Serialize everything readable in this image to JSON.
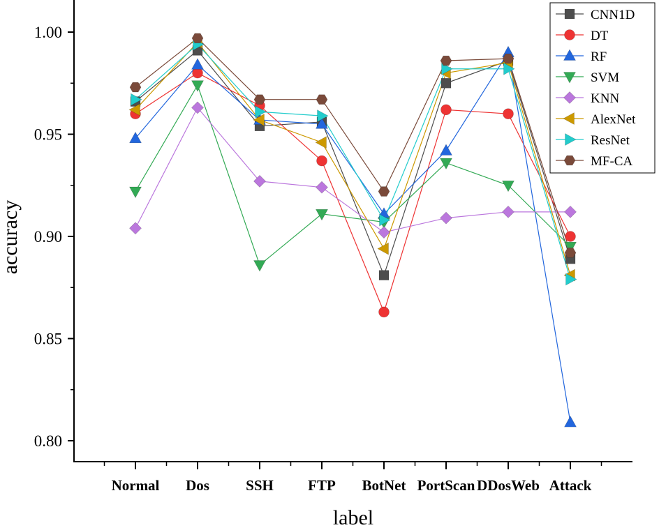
{
  "chart_data": {
    "type": "line",
    "title": "",
    "xlabel": "label",
    "ylabel": "accuracy",
    "categories": [
      "Normal",
      "Dos",
      "SSH",
      "FTP",
      "BotNet",
      "PortScan",
      "DDosWeb",
      "Attack"
    ],
    "ylim": [
      0.78,
      1.005
    ],
    "yticks": [
      "0.80",
      "0.85",
      "0.90",
      "0.95",
      "1.00"
    ],
    "legend_position": "top-right",
    "series": [
      {
        "name": "CNN1D",
        "color": "#4d4d4d",
        "marker": "square",
        "values": [
          0.966,
          0.991,
          0.954,
          0.956,
          0.881,
          0.975,
          0.986,
          0.889
        ]
      },
      {
        "name": "DT",
        "color": "#ee3333",
        "marker": "circle",
        "values": [
          0.96,
          0.98,
          0.964,
          0.937,
          0.863,
          0.962,
          0.96,
          0.9
        ]
      },
      {
        "name": "RF",
        "color": "#2266dd",
        "marker": "triangle-up",
        "values": [
          0.948,
          0.984,
          0.957,
          0.955,
          0.911,
          0.942,
          0.99,
          0.809
        ]
      },
      {
        "name": "SVM",
        "color": "#33aa55",
        "marker": "triangle-down",
        "values": [
          0.922,
          0.974,
          0.886,
          0.911,
          0.907,
          0.936,
          0.925,
          0.895
        ]
      },
      {
        "name": "KNN",
        "color": "#bb77dd",
        "marker": "diamond",
        "values": [
          0.904,
          0.963,
          0.927,
          0.924,
          0.902,
          0.909,
          0.912,
          0.912
        ]
      },
      {
        "name": "AlexNet",
        "color": "#cc9900",
        "marker": "triangle-left",
        "values": [
          0.962,
          0.995,
          0.957,
          0.946,
          0.894,
          0.98,
          0.985,
          0.881
        ]
      },
      {
        "name": "ResNet",
        "color": "#22cccc",
        "marker": "triangle-right",
        "values": [
          0.967,
          0.994,
          0.961,
          0.959,
          0.908,
          0.982,
          0.982,
          0.879
        ]
      },
      {
        "name": "MF-CA",
        "color": "#7a4a3a",
        "marker": "hexagon",
        "values": [
          0.973,
          0.997,
          0.967,
          0.967,
          0.922,
          0.986,
          0.987,
          0.892
        ]
      }
    ]
  }
}
